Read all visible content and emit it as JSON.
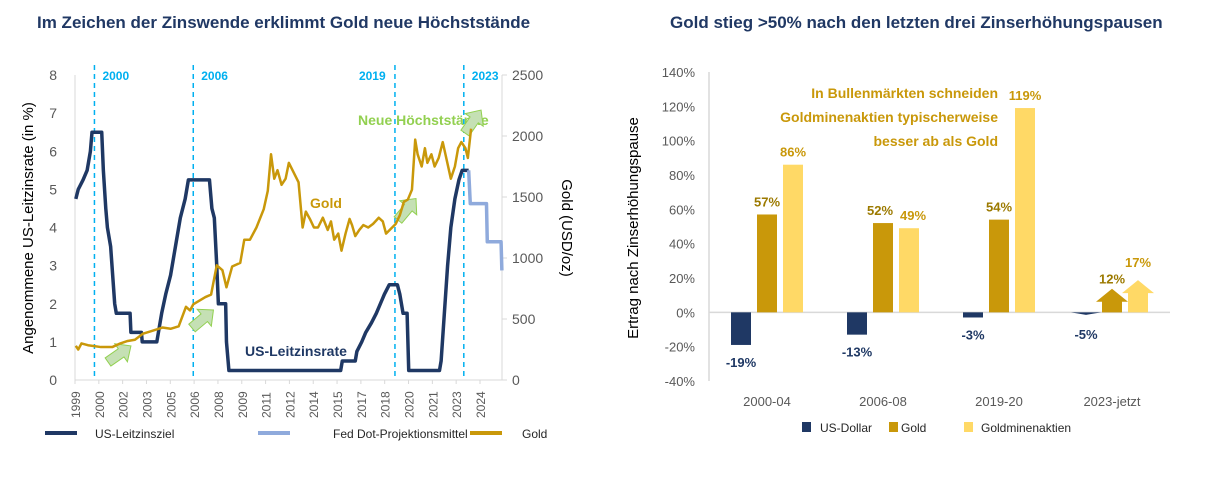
{
  "chart_data": [
    {
      "type": "line",
      "title": "Im Zeichen der Zinswende erklimmt Gold neue Höchststände",
      "ylabel": "Angenommene US-Leitzinsrate (in %)",
      "y2label": "Gold (USD/oz)",
      "ylim": [
        0,
        8
      ],
      "y2lim": [
        0,
        2500
      ],
      "yticks": [
        "0",
        "1",
        "2",
        "3",
        "4",
        "5",
        "6",
        "7",
        "8"
      ],
      "y2ticks": [
        "0",
        "500",
        "1000",
        "1500",
        "2000",
        "2500"
      ],
      "xticks": [
        "1999",
        "2000",
        "2002",
        "2003",
        "2005",
        "2006",
        "2008",
        "2009",
        "2011",
        "2012",
        "2014",
        "2015",
        "2017",
        "2018",
        "2020",
        "2021",
        "2023",
        "2024"
      ],
      "grid": false,
      "legend_position": "bottom",
      "series": [
        {
          "name": "US-Leitzinsziel",
          "axis": "left",
          "color": "#1f3864",
          "points": [
            [
              1999.05,
              4.75
            ],
            [
              1999.2,
              5.0
            ],
            [
              1999.5,
              5.25
            ],
            [
              1999.75,
              5.5
            ],
            [
              1999.85,
              5.75
            ],
            [
              1999.95,
              6.0
            ],
            [
              2000.05,
              6.5
            ],
            [
              2000.65,
              6.5
            ],
            [
              2000.75,
              5.5
            ],
            [
              2000.9,
              4.5
            ],
            [
              2001.0,
              4.0
            ],
            [
              2001.2,
              3.5
            ],
            [
              2001.45,
              2.0
            ],
            [
              2001.55,
              1.75
            ],
            [
              2002.4,
              1.75
            ],
            [
              2002.45,
              1.25
            ],
            [
              2003.1,
              1.25
            ],
            [
              2003.15,
              1.0
            ],
            [
              2004.05,
              1.0
            ],
            [
              2004.15,
              1.25
            ],
            [
              2004.35,
              1.75
            ],
            [
              2004.6,
              2.25
            ],
            [
              2004.9,
              2.75
            ],
            [
              2005.2,
              3.5
            ],
            [
              2005.5,
              4.25
            ],
            [
              2005.8,
              4.75
            ],
            [
              2006.0,
              5.25
            ],
            [
              2007.3,
              5.25
            ],
            [
              2007.45,
              4.5
            ],
            [
              2007.6,
              4.25
            ],
            [
              2007.75,
              3.0
            ],
            [
              2007.85,
              2.0
            ],
            [
              2008.3,
              2.0
            ],
            [
              2008.35,
              1.0
            ],
            [
              2008.5,
              0.25
            ],
            [
              2015.4,
              0.25
            ],
            [
              2015.5,
              0.5
            ],
            [
              2016.3,
              0.5
            ],
            [
              2016.4,
              0.75
            ],
            [
              2016.7,
              1.0
            ],
            [
              2016.95,
              1.25
            ],
            [
              2017.3,
              1.5
            ],
            [
              2017.6,
              1.75
            ],
            [
              2017.85,
              2.0
            ],
            [
              2018.1,
              2.25
            ],
            [
              2018.4,
              2.5
            ],
            [
              2018.9,
              2.5
            ],
            [
              2019.05,
              2.25
            ],
            [
              2019.15,
              2.0
            ],
            [
              2019.25,
              1.75
            ],
            [
              2019.5,
              1.75
            ],
            [
              2019.6,
              0.25
            ],
            [
              2021.5,
              0.25
            ],
            [
              2021.6,
              0.5
            ],
            [
              2021.8,
              1.75
            ],
            [
              2022.0,
              3.0
            ],
            [
              2022.2,
              4.0
            ],
            [
              2022.45,
              4.75
            ],
            [
              2022.7,
              5.25
            ],
            [
              2022.9,
              5.5
            ],
            [
              2023.3,
              5.5
            ]
          ]
        },
        {
          "name": "Fed Dot-Projektionsmittel",
          "axis": "left",
          "color": "#8faadc",
          "points": [
            [
              2023.3,
              5.5
            ],
            [
              2023.4,
              4.625
            ],
            [
              2024.4,
              4.625
            ],
            [
              2024.45,
              3.625
            ],
            [
              2025.3,
              3.625
            ],
            [
              2025.35,
              2.875
            ]
          ]
        },
        {
          "name": "Gold",
          "axis": "right",
          "color": "#c9980a",
          "points": [
            [
              1999.05,
              280
            ],
            [
              1999.2,
              250
            ],
            [
              1999.4,
              300
            ],
            [
              1999.8,
              285
            ],
            [
              2000.6,
              270
            ],
            [
              2001.3,
              270
            ],
            [
              2001.8,
              300
            ],
            [
              2002.25,
              320
            ],
            [
              2002.7,
              330
            ],
            [
              2003.2,
              380
            ],
            [
              2003.7,
              400
            ],
            [
              2004.4,
              430
            ],
            [
              2004.9,
              420
            ],
            [
              2005.4,
              440
            ],
            [
              2005.85,
              600
            ],
            [
              2006.1,
              570
            ],
            [
              2006.3,
              620
            ],
            [
              2007.05,
              680
            ],
            [
              2007.4,
              700
            ],
            [
              2007.75,
              940
            ],
            [
              2008.1,
              900
            ],
            [
              2008.35,
              760
            ],
            [
              2008.7,
              930
            ],
            [
              2009.2,
              960
            ],
            [
              2009.45,
              1150
            ],
            [
              2009.8,
              1150
            ],
            [
              2010.2,
              1250
            ],
            [
              2010.65,
              1400
            ],
            [
              2010.9,
              1550
            ],
            [
              2011.1,
              1850
            ],
            [
              2011.3,
              1650
            ],
            [
              2011.5,
              1720
            ],
            [
              2011.75,
              1600
            ],
            [
              2012.0,
              1650
            ],
            [
              2012.2,
              1780
            ],
            [
              2012.5,
              1700
            ],
            [
              2012.8,
              1620
            ],
            [
              2013.05,
              1250
            ],
            [
              2013.25,
              1380
            ],
            [
              2013.5,
              1320
            ],
            [
              2013.75,
              1250
            ],
            [
              2014.0,
              1250
            ],
            [
              2014.3,
              1330
            ],
            [
              2014.6,
              1230
            ],
            [
              2014.8,
              1300
            ],
            [
              2015.0,
              1150
            ],
            [
              2015.25,
              1200
            ],
            [
              2015.45,
              1060
            ],
            [
              2015.7,
              1200
            ],
            [
              2015.95,
              1320
            ],
            [
              2016.1,
              1270
            ],
            [
              2016.3,
              1180
            ],
            [
              2016.55,
              1230
            ],
            [
              2016.8,
              1270
            ],
            [
              2017.1,
              1250
            ],
            [
              2017.4,
              1280
            ],
            [
              2017.75,
              1330
            ],
            [
              2018.0,
              1300
            ],
            [
              2018.2,
              1200
            ],
            [
              2018.5,
              1240
            ],
            [
              2018.8,
              1280
            ],
            [
              2019.05,
              1350
            ],
            [
              2019.3,
              1460
            ],
            [
              2019.55,
              1480
            ],
            [
              2019.8,
              1560
            ],
            [
              2020.0,
              1970
            ],
            [
              2020.15,
              1850
            ],
            [
              2020.4,
              1750
            ],
            [
              2020.6,
              1900
            ],
            [
              2020.75,
              1780
            ],
            [
              2021.0,
              1850
            ],
            [
              2021.2,
              1750
            ],
            [
              2021.45,
              1820
            ],
            [
              2021.7,
              1950
            ],
            [
              2021.95,
              1800
            ],
            [
              2022.2,
              1650
            ],
            [
              2022.45,
              1750
            ],
            [
              2022.65,
              1900
            ],
            [
              2022.85,
              1950
            ],
            [
              2023.1,
              1900
            ],
            [
              2023.25,
              1820
            ],
            [
              2023.45,
              2060
            ]
          ]
        }
      ],
      "vlines": [
        {
          "x": 2000.2,
          "label": "2000"
        },
        {
          "x": 2006.3,
          "label": "2006"
        },
        {
          "x": 2018.75,
          "label": "2019"
        },
        {
          "x": 2023.0,
          "label": "2023"
        }
      ],
      "annotations": {
        "gold": "Gold",
        "rate": "US-Leitzinsrate",
        "highs": "Neue Höchststände"
      }
    },
    {
      "type": "bar",
      "title": "Gold stieg >50% nach den letzten drei Zinserhöhungspausen",
      "ylabel": "Ertrag nach Zinserhöhungspause",
      "ylim": [
        -40,
        140
      ],
      "yticks": [
        "-40%",
        "-20%",
        "0%",
        "20%",
        "40%",
        "60%",
        "80%",
        "100%",
        "120%",
        "140%"
      ],
      "categories": [
        "2000-04",
        "2006-08",
        "2019-20",
        "2023-jetzt"
      ],
      "legend_position": "bottom",
      "series": [
        {
          "name": "US-Dollar",
          "color": "#1f3864",
          "values": [
            -19,
            -13,
            -3,
            -5
          ],
          "labels": [
            "-19%",
            "-13%",
            "-3%",
            "-5%"
          ]
        },
        {
          "name": "Gold",
          "color": "#c9980a",
          "values": [
            57,
            52,
            54,
            12
          ],
          "labels": [
            "57%",
            "52%",
            "54%",
            "12%"
          ]
        },
        {
          "name": "Goldminenaktien",
          "color": "#ffd966",
          "values": [
            86,
            49,
            119,
            17
          ],
          "labels": [
            "86%",
            "49%",
            "119%",
            "17%"
          ]
        }
      ],
      "annotation": [
        "In Bullenmärkten schneiden",
        "Goldminenaktien typischerweise",
        "besser ab als Gold"
      ]
    }
  ]
}
